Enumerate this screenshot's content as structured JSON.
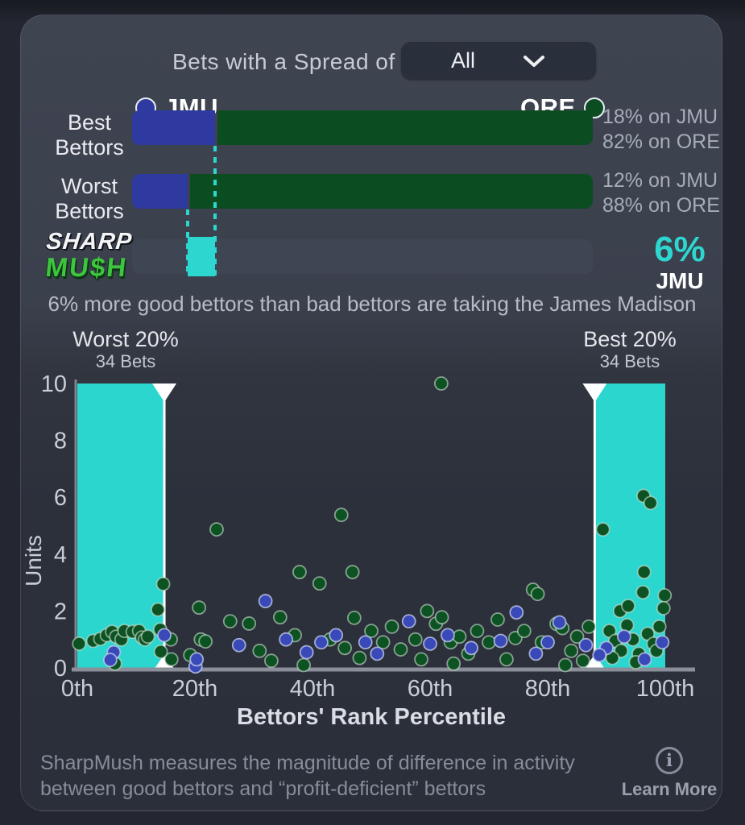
{
  "header": {
    "label": "Bets with a Spread of"
  },
  "dropdown": {
    "value": "All"
  },
  "legend": {
    "jmu": {
      "team": "JMU",
      "color": "#2e3a9f"
    },
    "ore": {
      "team": "ORE",
      "color": "#0b4d20"
    }
  },
  "bars": [
    {
      "label_line1": "Best",
      "label_line2": "Bettors",
      "jmu_pct": 18,
      "ore_pct": 82,
      "annotation_line1": "18% on JMU",
      "annotation_line2": "82% on ORE"
    },
    {
      "label_line1": "Worst",
      "label_line2": "Bettors",
      "jmu_pct": 12,
      "ore_pct": 88,
      "annotation_line1": "12% on JMU",
      "annotation_line2": "88% on ORE"
    }
  ],
  "mush": {
    "logo_line1": "SHARP",
    "logo_line2": "MU$H",
    "value_label": "6%",
    "team": "JMU",
    "range_start_pct": 12,
    "range_end_pct": 18,
    "accent_color": "#2dd7cf"
  },
  "caption": "6% more good bettors than bad bettors are taking the James Madison",
  "chart_data": {
    "type": "scatter",
    "xlabel": "Bettors' Rank Percentile",
    "ylabel": "Units",
    "xlim": [
      0,
      100
    ],
    "ylim": [
      0,
      10
    ],
    "x_tick_labels": [
      "0th",
      "20th",
      "40th",
      "60th",
      "80th",
      "100th"
    ],
    "x_tick_values": [
      0,
      20,
      40,
      60,
      80,
      100
    ],
    "y_ticks": [
      0,
      2,
      4,
      6,
      8,
      10
    ],
    "grid": false,
    "bands": [
      {
        "label": "Worst 20%",
        "sublabel": "34 Bets",
        "x_start": 0,
        "x_end": 14.8,
        "color": "#2bd6ce",
        "edge": "end"
      },
      {
        "label": "Best 20%",
        "sublabel": "34 Bets",
        "x_start": 88,
        "x_end": 100,
        "color": "#2bd6ce",
        "edge": "start"
      }
    ],
    "series": [
      {
        "name": "ORE",
        "color": "#0d5222",
        "stroke": "rgba(205,225,210,0.6)",
        "points": [
          [
            0.3,
            0.85
          ],
          [
            2.7,
            0.95
          ],
          [
            3.9,
            1.02
          ],
          [
            5.0,
            1.15
          ],
          [
            5.9,
            1.27
          ],
          [
            6.6,
            1.1
          ],
          [
            7.5,
            1.0
          ],
          [
            8.0,
            1.3
          ],
          [
            9.4,
            1.27
          ],
          [
            10.5,
            1.3
          ],
          [
            11.0,
            1.07
          ],
          [
            11.5,
            1.0
          ],
          [
            12.0,
            1.1
          ],
          [
            6.4,
            0.15
          ],
          [
            14.2,
            0.57
          ],
          [
            13.7,
            2.05
          ],
          [
            14.6,
            2.95
          ],
          [
            14.1,
            1.35
          ],
          [
            15.9,
            1.0
          ],
          [
            16.0,
            0.3
          ],
          [
            19.2,
            0.45
          ],
          [
            20.7,
            2.12
          ],
          [
            21.0,
            1.0
          ],
          [
            21.8,
            0.93
          ],
          [
            23.7,
            4.87
          ],
          [
            26.0,
            1.64
          ],
          [
            29.2,
            1.56
          ],
          [
            31.0,
            0.6
          ],
          [
            33.0,
            0.25
          ],
          [
            34.5,
            1.78
          ],
          [
            37.0,
            1.15
          ],
          [
            37.8,
            3.37
          ],
          [
            38.5,
            0.1
          ],
          [
            41.2,
            2.97
          ],
          [
            44.9,
            5.38
          ],
          [
            46.8,
            3.37
          ],
          [
            47.1,
            1.76
          ],
          [
            43.0,
            1.0
          ],
          [
            45.5,
            0.7
          ],
          [
            48.0,
            0.35
          ],
          [
            50.0,
            1.3
          ],
          [
            52.0,
            0.9
          ],
          [
            53.5,
            1.45
          ],
          [
            55.0,
            0.65
          ],
          [
            57.5,
            1.0
          ],
          [
            58.5,
            0.3
          ],
          [
            61.9,
            10.0
          ],
          [
            59.5,
            2.0
          ],
          [
            61.0,
            1.55
          ],
          [
            62.0,
            1.78
          ],
          [
            63.5,
            0.9
          ],
          [
            65.0,
            1.1
          ],
          [
            66.5,
            0.5
          ],
          [
            68.0,
            1.3
          ],
          [
            70.0,
            0.9
          ],
          [
            71.5,
            1.7
          ],
          [
            73.0,
            0.3
          ],
          [
            74.5,
            1.05
          ],
          [
            76.0,
            1.3
          ],
          [
            77.5,
            2.75
          ],
          [
            78.3,
            2.6
          ],
          [
            79.0,
            0.9
          ],
          [
            64.0,
            0.15
          ],
          [
            81.5,
            1.55
          ],
          [
            82.5,
            1.4
          ],
          [
            84.0,
            0.6
          ],
          [
            85.0,
            1.1
          ],
          [
            86.0,
            0.25
          ],
          [
            87.0,
            1.45
          ],
          [
            83.0,
            0.1
          ],
          [
            89.4,
            4.87
          ],
          [
            96.3,
            6.05
          ],
          [
            97.5,
            5.8
          ],
          [
            96.4,
            3.37
          ],
          [
            96.2,
            2.66
          ],
          [
            92.3,
            2.0
          ],
          [
            93.7,
            2.18
          ],
          [
            99.9,
            2.55
          ],
          [
            99.7,
            2.1
          ],
          [
            90.5,
            1.3
          ],
          [
            91.5,
            0.95
          ],
          [
            92.5,
            0.6
          ],
          [
            93.5,
            1.5
          ],
          [
            94.5,
            1.0
          ],
          [
            95.5,
            0.5
          ],
          [
            97.0,
            1.2
          ],
          [
            98.0,
            0.85
          ],
          [
            99.0,
            1.45
          ],
          [
            95.0,
            0.2
          ],
          [
            91.0,
            0.35
          ],
          [
            98.5,
            0.6
          ]
        ]
      },
      {
        "name": "JMU",
        "color": "#3a49b8",
        "stroke": "rgba(190,200,235,0.8)",
        "points": [
          [
            6.2,
            0.55
          ],
          [
            5.6,
            0.28
          ],
          [
            14.8,
            1.15
          ],
          [
            20.1,
            0.05
          ],
          [
            20.3,
            0.3
          ],
          [
            27.5,
            0.8
          ],
          [
            32.0,
            2.35
          ],
          [
            35.5,
            1.0
          ],
          [
            39.0,
            0.55
          ],
          [
            41.5,
            0.9
          ],
          [
            44.0,
            1.15
          ],
          [
            49.0,
            0.9
          ],
          [
            51.0,
            0.5
          ],
          [
            56.4,
            1.64
          ],
          [
            60.0,
            0.85
          ],
          [
            63.0,
            1.15
          ],
          [
            67.0,
            0.7
          ],
          [
            72.0,
            0.95
          ],
          [
            74.7,
            1.95
          ],
          [
            78.0,
            0.5
          ],
          [
            80.0,
            0.9
          ],
          [
            82.0,
            1.6
          ],
          [
            86.5,
            0.8
          ],
          [
            90.0,
            0.7
          ],
          [
            93.0,
            1.1
          ],
          [
            96.5,
            0.3
          ],
          [
            99.5,
            0.9
          ],
          [
            88.8,
            0.45
          ]
        ]
      }
    ]
  },
  "footer": {
    "line1": "SharpMush measures the magnitude of difference in activity",
    "line2": "between good bettors and “profit-deficient” bettors",
    "learn_more": "Learn More"
  }
}
